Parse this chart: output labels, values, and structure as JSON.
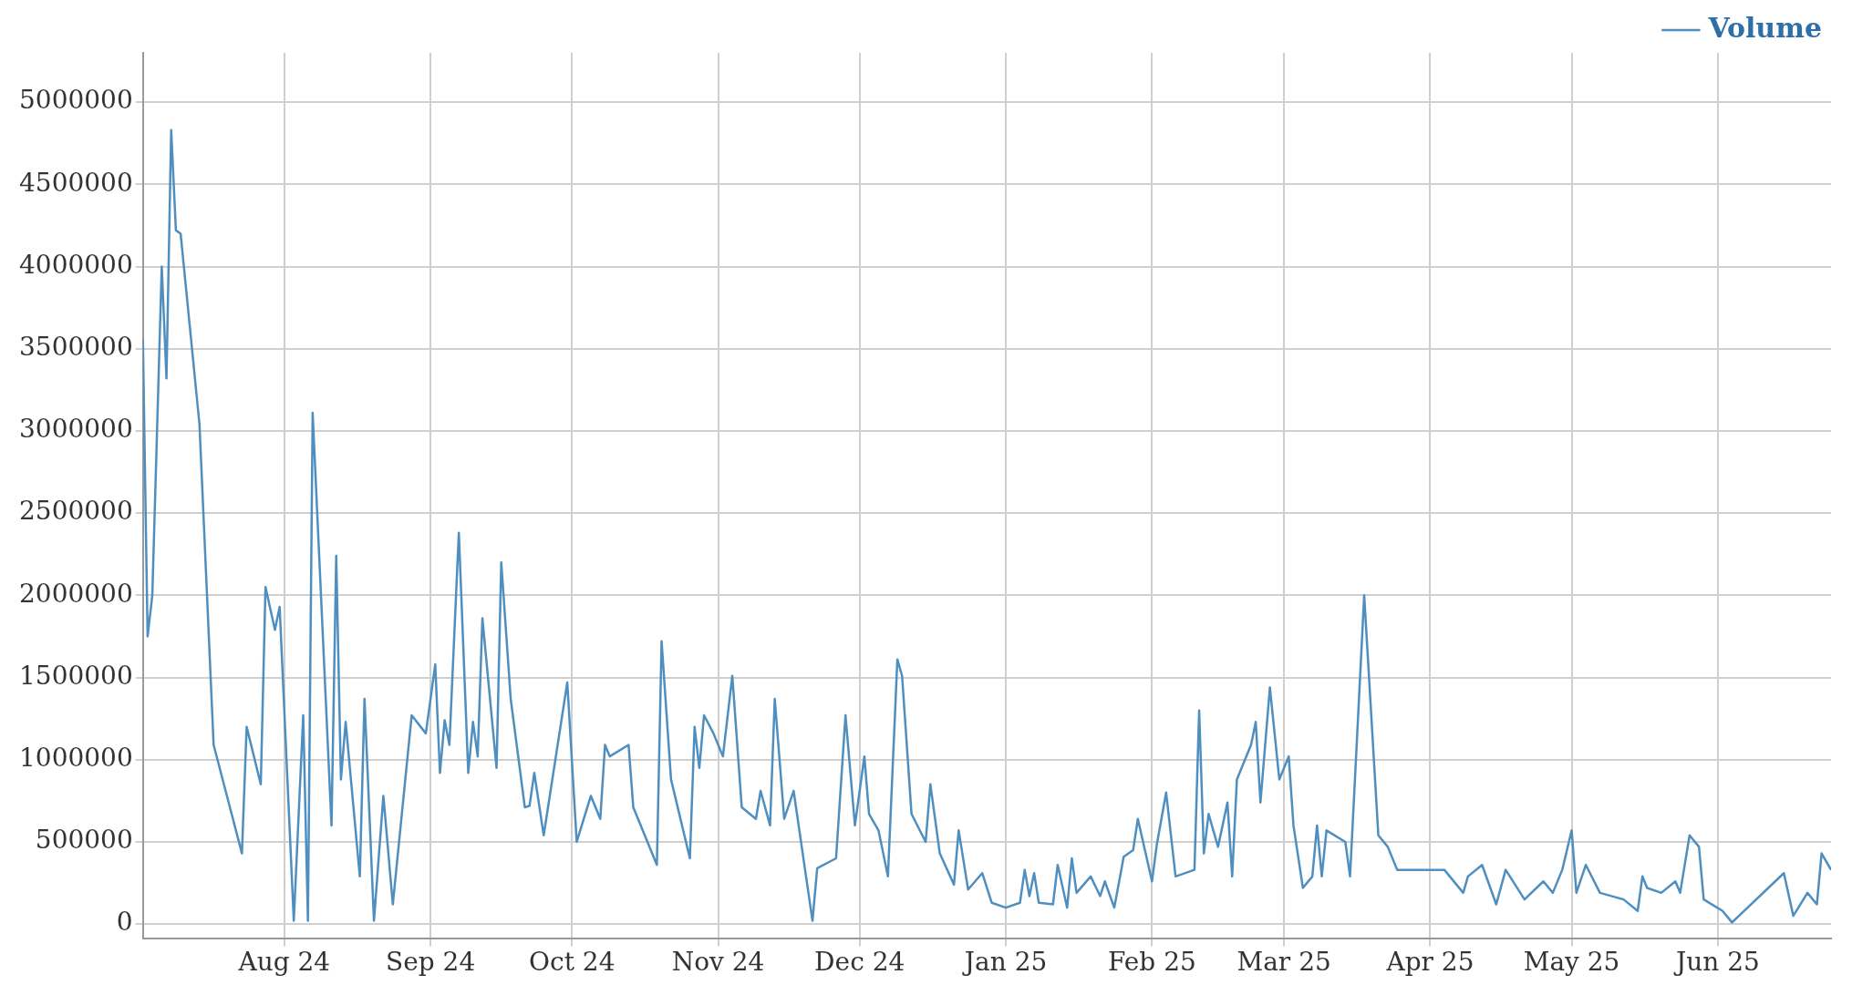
{
  "chart_data": {
    "type": "line",
    "legend": "top right",
    "grid": true,
    "marker": "none",
    "line_style": "solid",
    "xlim": [
      "2024-07-02",
      "2025-06-25"
    ],
    "xticks": [
      {
        "value": "2024-08-01",
        "label": "Aug 24"
      },
      {
        "value": "2024-09-01",
        "label": "Sep 24"
      },
      {
        "value": "2024-10-01",
        "label": "Oct 24"
      },
      {
        "value": "2024-11-01",
        "label": "Nov 24"
      },
      {
        "value": "2024-12-01",
        "label": "Dec 24"
      },
      {
        "value": "2025-01-01",
        "label": "Jan 25"
      },
      {
        "value": "2025-02-01",
        "label": "Feb 25"
      },
      {
        "value": "2025-03-01",
        "label": "Mar 25"
      },
      {
        "value": "2025-04-01",
        "label": "Apr 25"
      },
      {
        "value": "2025-05-01",
        "label": "May 25"
      },
      {
        "value": "2025-06-01",
        "label": "Jun 25"
      }
    ],
    "ylim": [
      -90000,
      5300000
    ],
    "yticks": [
      0,
      500000,
      1000000,
      1500000,
      2000000,
      2500000,
      3000000,
      3500000,
      4000000,
      4500000,
      5000000
    ],
    "x": [
      "2024-07-02",
      "2024-07-03",
      "2024-07-04",
      "2024-07-06",
      "2024-07-07",
      "2024-07-08",
      "2024-07-09",
      "2024-07-10",
      "2024-07-14",
      "2024-07-17",
      "2024-07-23",
      "2024-07-24",
      "2024-07-27",
      "2024-07-28",
      "2024-07-30",
      "2024-07-31",
      "2024-08-03",
      "2024-08-05",
      "2024-08-06",
      "2024-08-07",
      "2024-08-11",
      "2024-08-12",
      "2024-08-13",
      "2024-08-14",
      "2024-08-17",
      "2024-08-18",
      "2024-08-20",
      "2024-08-22",
      "2024-08-24",
      "2024-08-28",
      "2024-08-31",
      "2024-09-02",
      "2024-09-03",
      "2024-09-04",
      "2024-09-05",
      "2024-09-07",
      "2024-09-09",
      "2024-09-10",
      "2024-09-11",
      "2024-09-12",
      "2024-09-15",
      "2024-09-16",
      "2024-09-18",
      "2024-09-21",
      "2024-09-22",
      "2024-09-23",
      "2024-09-25",
      "2024-09-30",
      "2024-10-02",
      "2024-10-05",
      "2024-10-07",
      "2024-10-08",
      "2024-10-09",
      "2024-10-13",
      "2024-10-14",
      "2024-10-19",
      "2024-10-20",
      "2024-10-22",
      "2024-10-26",
      "2024-10-27",
      "2024-10-28",
      "2024-10-29",
      "2024-10-31",
      "2024-11-02",
      "2024-11-04",
      "2024-11-06",
      "2024-11-09",
      "2024-11-10",
      "2024-11-12",
      "2024-11-13",
      "2024-11-15",
      "2024-11-17",
      "2024-11-21",
      "2024-11-22",
      "2024-11-26",
      "2024-11-28",
      "2024-11-30",
      "2024-12-02",
      "2024-12-03",
      "2024-12-05",
      "2024-12-07",
      "2024-12-09",
      "2024-12-10",
      "2024-12-12",
      "2024-12-15",
      "2024-12-16",
      "2024-12-18",
      "2024-12-21",
      "2024-12-22",
      "2024-12-24",
      "2024-12-27",
      "2024-12-29",
      "2025-01-01",
      "2025-01-04",
      "2025-01-05",
      "2025-01-06",
      "2025-01-07",
      "2025-01-08",
      "2025-01-11",
      "2025-01-12",
      "2025-01-14",
      "2025-01-15",
      "2025-01-16",
      "2025-01-19",
      "2025-01-21",
      "2025-01-22",
      "2025-01-24",
      "2025-01-26",
      "2025-01-28",
      "2025-01-29",
      "2025-02-01",
      "2025-02-02",
      "2025-02-04",
      "2025-02-06",
      "2025-02-10",
      "2025-02-11",
      "2025-02-12",
      "2025-02-13",
      "2025-02-15",
      "2025-02-17",
      "2025-02-18",
      "2025-02-19",
      "2025-02-22",
      "2025-02-23",
      "2025-02-24",
      "2025-02-26",
      "2025-02-28",
      "2025-03-02",
      "2025-03-03",
      "2025-03-05",
      "2025-03-07",
      "2025-03-08",
      "2025-03-09",
      "2025-03-10",
      "2025-03-14",
      "2025-03-15",
      "2025-03-18",
      "2025-03-21",
      "2025-03-23",
      "2025-03-25",
      "2025-04-04",
      "2025-04-08",
      "2025-04-09",
      "2025-04-12",
      "2025-04-15",
      "2025-04-17",
      "2025-04-21",
      "2025-04-25",
      "2025-04-27",
      "2025-04-29",
      "2025-05-01",
      "2025-05-02",
      "2025-05-04",
      "2025-05-07",
      "2025-05-12",
      "2025-05-15",
      "2025-05-16",
      "2025-05-17",
      "2025-05-20",
      "2025-05-23",
      "2025-05-24",
      "2025-05-26",
      "2025-05-28",
      "2025-05-29",
      "2025-06-02",
      "2025-06-04",
      "2025-06-15",
      "2025-06-17",
      "2025-06-20",
      "2025-06-22",
      "2025-06-23",
      "2025-06-25"
    ],
    "series": [
      {
        "name": "Volume",
        "color": "#4f8fc0",
        "values": [
          3560000,
          1750000,
          2000000,
          4000000,
          3320000,
          4830000,
          4220000,
          4200000,
          3040000,
          1090000,
          430000,
          1200000,
          850000,
          2050000,
          1790000,
          1930000,
          20000,
          1270000,
          20000,
          3110000,
          600000,
          2240000,
          880000,
          1230000,
          290000,
          1370000,
          20000,
          780000,
          120000,
          1270000,
          1160000,
          1580000,
          920000,
          1240000,
          1090000,
          2380000,
          920000,
          1230000,
          1020000,
          1860000,
          950000,
          2200000,
          1370000,
          710000,
          720000,
          920000,
          540000,
          1470000,
          500000,
          780000,
          640000,
          1090000,
          1020000,
          1090000,
          710000,
          360000,
          1720000,
          880000,
          400000,
          1200000,
          950000,
          1270000,
          1160000,
          1020000,
          1510000,
          710000,
          640000,
          810000,
          600000,
          1370000,
          640000,
          810000,
          20000,
          340000,
          400000,
          1270000,
          600000,
          1020000,
          670000,
          570000,
          290000,
          1610000,
          1510000,
          670000,
          500000,
          850000,
          430000,
          240000,
          570000,
          210000,
          310000,
          130000,
          100000,
          130000,
          330000,
          170000,
          310000,
          130000,
          120000,
          360000,
          100000,
          400000,
          190000,
          290000,
          170000,
          260000,
          100000,
          410000,
          450000,
          640000,
          260000,
          480000,
          800000,
          290000,
          330000,
          1300000,
          430000,
          670000,
          470000,
          740000,
          290000,
          880000,
          1090000,
          1230000,
          740000,
          1440000,
          880000,
          1020000,
          600000,
          220000,
          290000,
          600000,
          290000,
          570000,
          500000,
          290000,
          2000000,
          540000,
          470000,
          330000,
          330000,
          190000,
          290000,
          360000,
          120000,
          330000,
          150000,
          260000,
          190000,
          330000,
          570000,
          190000,
          360000,
          190000,
          150000,
          80000,
          290000,
          220000,
          190000,
          260000,
          190000,
          540000,
          470000,
          150000,
          80000,
          10000,
          310000,
          50000,
          190000,
          120000,
          430000,
          330000
        ]
      }
    ]
  }
}
